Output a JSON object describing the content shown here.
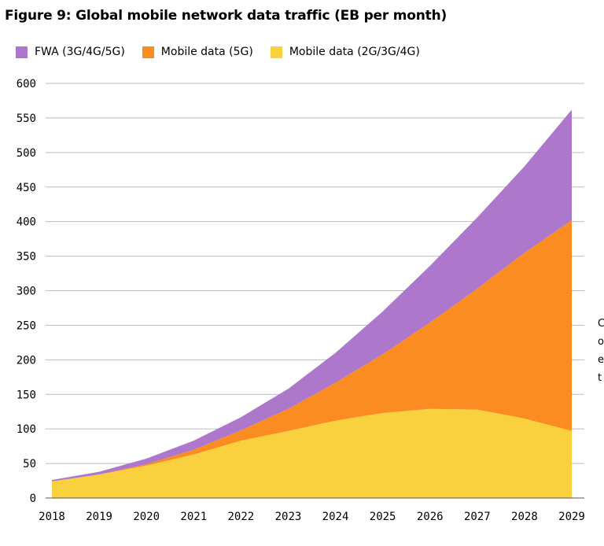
{
  "chart_data": {
    "type": "area",
    "stacked": true,
    "title": "Figure 9: Global mobile network data traffic (EB per month)",
    "xlabel": "",
    "ylabel": "",
    "categories": [
      "2018",
      "2019",
      "2020",
      "2021",
      "2022",
      "2023",
      "2024",
      "2025",
      "2026",
      "2027",
      "2028",
      "2029"
    ],
    "ylim": [
      0,
      600
    ],
    "yticks": [
      0,
      50,
      100,
      150,
      200,
      250,
      300,
      350,
      400,
      450,
      500,
      550,
      600
    ],
    "grid": true,
    "legend_position": "top-left",
    "series": [
      {
        "name": "Mobile data (2G/3G/4G)",
        "color": "#f9d13e",
        "values": [
          24,
          34,
          47,
          63,
          83,
          97,
          112,
          123,
          129,
          128,
          115,
          97
        ]
      },
      {
        "name": "Mobile data (5G)",
        "color": "#fa8c22",
        "values": [
          0,
          0,
          2,
          7,
          15,
          32,
          55,
          85,
          125,
          175,
          240,
          305
        ]
      },
      {
        "name": "FWA (3G/4G/5G)",
        "color": "#ad78cc",
        "values": [
          2,
          4,
          8,
          13,
          19,
          29,
          43,
          62,
          82,
          103,
          125,
          160
        ]
      }
    ],
    "legend_order": [
      "FWA (3G/4G/5G)",
      "Mobile data (5G)",
      "Mobile data (2G/3G/4G)"
    ]
  },
  "edge_text": [
    "C",
    "o",
    "e",
    "t"
  ]
}
